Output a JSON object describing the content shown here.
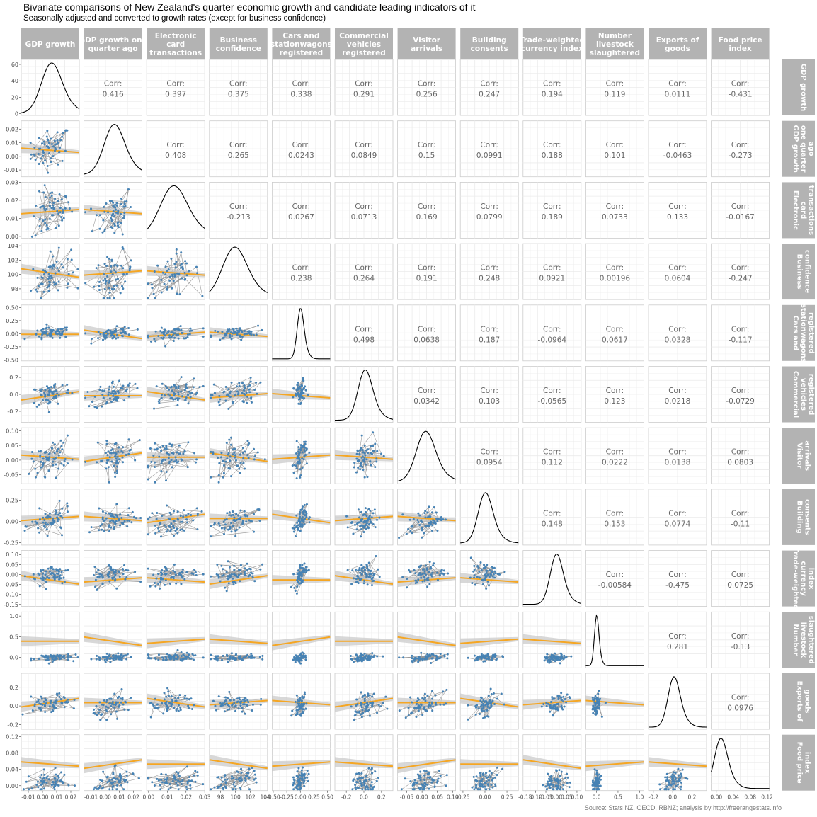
{
  "title": "Bivariate comparisons of New Zealand's quarter economic growth and candidate leading indicators of it",
  "subtitle": "Seasonally adjusted and converted to growth rates (except for business confidence)",
  "caption": "Source: Stats NZ, OECD, RBNZ; analysis by http://freerangestats.info",
  "colors": {
    "strip_bg": "#b3b3b3",
    "strip_text": "#ffffff",
    "point": "#4682b4",
    "path": "#999999",
    "fit_line": "#f5a623",
    "ribbon": "#c8c8c8",
    "corr_text": "#666666",
    "grid": "#ebebeb",
    "panel_border": "#cccccc"
  },
  "chart_data": {
    "type": "scatter",
    "variables": [
      {
        "label": "GDP growth",
        "range": [
          -0.015,
          0.026
        ],
        "ticks": [
          -0.01,
          0.0,
          0.01,
          0.02
        ],
        "tick_labels": [
          "-0.01",
          "0.00",
          "0.01",
          "0.02"
        ],
        "dist": {
          "mean": 0.006,
          "sd": 0.007
        }
      },
      {
        "label": "GDP growth one quarter ago",
        "range": [
          -0.015,
          0.026
        ],
        "ticks": [
          -0.01,
          0.0,
          0.01,
          0.02
        ],
        "tick_labels": [
          "-0.01",
          "0.00",
          "0.01",
          "0.02"
        ],
        "dist": {
          "mean": 0.006,
          "sd": 0.007
        }
      },
      {
        "label": "Electronic card transactions",
        "range": [
          -0.001,
          0.03
        ],
        "ticks": [
          0.0,
          0.01,
          0.02,
          0.03
        ],
        "tick_labels": [
          "0.00",
          "0.01",
          "0.02",
          "0.03"
        ],
        "dist": {
          "mean": 0.013,
          "sd": 0.007
        }
      },
      {
        "label": "Business confidence",
        "range": [
          96.5,
          104.3
        ],
        "ticks": [
          98,
          100,
          102,
          104
        ],
        "tick_labels": [
          "98",
          "100",
          "102",
          "104"
        ],
        "dist": {
          "mean": 99.8,
          "sd": 1.6
        }
      },
      {
        "label": "Cars and stationwagons registered",
        "range": [
          -0.52,
          0.55
        ],
        "ticks": [
          -0.5,
          -0.25,
          0.0,
          0.25,
          0.5
        ],
        "tick_labels": [
          "-0.50",
          "-0.25",
          "0.00",
          "0.25",
          "0.50"
        ],
        "dist": {
          "mean": 0.0,
          "sd": 0.06
        }
      },
      {
        "label": "Commercial vehicles registered",
        "range": [
          -0.33,
          0.33
        ],
        "ticks": [
          -0.2,
          0.0,
          0.2
        ],
        "tick_labels": [
          "-0.2",
          "0.0",
          "0.2"
        ],
        "dist": {
          "mean": 0.01,
          "sd": 0.08
        }
      },
      {
        "label": "Visitor arrivals",
        "range": [
          -0.08,
          0.11
        ],
        "ticks": [
          -0.05,
          0.0,
          0.05,
          0.1
        ],
        "tick_labels": [
          "-0.05",
          "0.00",
          "0.05",
          "0.10"
        ],
        "dist": {
          "mean": 0.01,
          "sd": 0.03
        }
      },
      {
        "label": "Building consents",
        "range": [
          -0.28,
          0.38
        ],
        "ticks": [
          -0.25,
          0.0,
          0.25
        ],
        "tick_labels": [
          "-0.25",
          "0.00",
          "0.25"
        ],
        "dist": {
          "mean": 0.0,
          "sd": 0.08
        }
      },
      {
        "label": "Trade-weighted currency index",
        "range": [
          -0.16,
          0.12
        ],
        "ticks": [
          -0.15,
          -0.1,
          -0.05,
          0.0,
          0.05,
          0.1
        ],
        "tick_labels": [
          "-0.15",
          "-0.10",
          "-0.05",
          "0.00",
          "0.05",
          "0.10"
        ],
        "dist": {
          "mean": 0.0,
          "sd": 0.03
        }
      },
      {
        "label": "Number livestock slaughtered",
        "range": [
          -0.25,
          1.1
        ],
        "ticks": [
          0.0,
          0.5,
          1.0
        ],
        "tick_labels": [
          "0.0",
          "0.5",
          "1.0"
        ],
        "dist": {
          "mean": 0.0,
          "sd": 0.05
        }
      },
      {
        "label": "Exports of goods",
        "range": [
          -0.25,
          0.35
        ],
        "ticks": [
          -0.2,
          0.0,
          0.2
        ],
        "tick_labels": [
          "-0.2",
          "0.0",
          "0.2"
        ],
        "dist": {
          "mean": 0.01,
          "sd": 0.06
        }
      },
      {
        "label": "Food price index",
        "range": [
          -0.012,
          0.125
        ],
        "ticks": [
          0.0,
          0.04,
          0.08,
          0.12
        ],
        "tick_labels": [
          "0.00",
          "0.04",
          "0.08",
          "0.12"
        ],
        "dist": {
          "mean": 0.01,
          "sd": 0.015
        }
      }
    ],
    "density_y_axis": {
      "range": [
        -2,
        66
      ],
      "ticks": [
        0,
        20,
        40,
        60
      ],
      "tick_labels": [
        "0",
        "20",
        "40",
        "60"
      ]
    },
    "corr_label": "Corr:",
    "correlations": [
      [
        "0.416",
        "0.397",
        "0.375",
        "0.338",
        "0.291",
        "0.256",
        "0.247",
        "0.194",
        "0.119",
        "0.0111",
        "-0.431"
      ],
      [
        "0.408",
        "0.265",
        "0.0243",
        "0.0849",
        "0.15",
        "0.0991",
        "0.188",
        "0.101",
        "-0.0463",
        "-0.273"
      ],
      [
        "-0.213",
        "0.0267",
        "0.0713",
        "0.169",
        "0.0799",
        "0.189",
        "0.0733",
        "0.133",
        "-0.0167"
      ],
      [
        "0.238",
        "0.264",
        "0.191",
        "0.248",
        "0.0921",
        "0.00196",
        "0.0604",
        "-0.247"
      ],
      [
        "0.498",
        "0.0638",
        "0.187",
        "-0.0964",
        "0.0617",
        "0.0328",
        "-0.117"
      ],
      [
        "0.0342",
        "0.103",
        "-0.0565",
        "0.123",
        "0.0218",
        "-0.0729"
      ],
      [
        "0.0954",
        "0.112",
        "0.0222",
        "0.0138",
        "0.0803"
      ],
      [
        "0.148",
        "0.153",
        "0.0774",
        "-0.11"
      ],
      [
        "-0.00584",
        "-0.475",
        "0.0725"
      ],
      [
        "0.281",
        "-0.13"
      ],
      [
        "0.0976"
      ]
    ]
  }
}
